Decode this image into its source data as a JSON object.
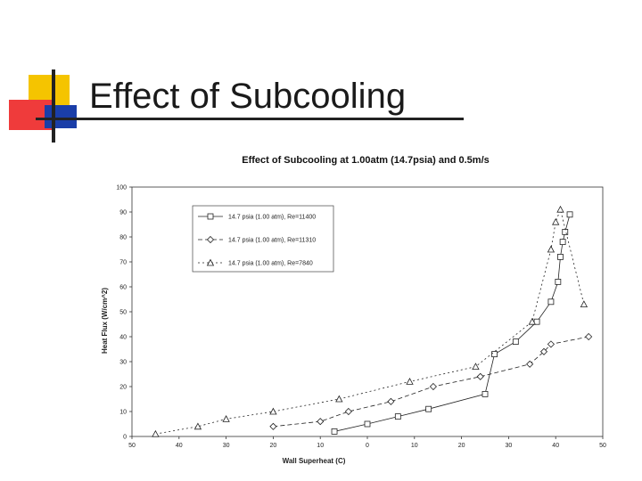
{
  "slide": {
    "title": "Effect of Subcooling"
  },
  "chart_data": {
    "type": "line",
    "title": "Effect of Subcooling at 1.00atm (14.7psia) and 0.5m/s",
    "xlabel": "Wall Superheat (C)",
    "ylabel": "Heat Flux (W/cm^2)",
    "xlim": [
      -50,
      50
    ],
    "ylim": [
      0,
      100
    ],
    "x_ticks": [
      -50,
      -40,
      -30,
      -20,
      -10,
      0,
      10,
      20,
      30,
      40,
      50
    ],
    "x_tick_labels": [
      "50",
      "40",
      "30",
      "20",
      "10",
      "0",
      "10",
      "20",
      "30",
      "40",
      "50"
    ],
    "y_ticks": [
      0,
      10,
      20,
      30,
      40,
      50,
      60,
      70,
      80,
      90,
      100
    ],
    "y_tick_labels": [
      "0",
      "10",
      "20",
      "30",
      "40",
      "50",
      "60",
      "70",
      "80",
      "90",
      "100"
    ],
    "legend_position": "top-left",
    "series": [
      {
        "name": "14.7 psia (1.00 atm), Re=11400",
        "marker": "square",
        "x": [
          -7,
          0,
          6.5,
          13,
          25,
          27,
          31.5,
          36,
          39,
          40.5,
          41,
          41.5,
          42,
          43
        ],
        "y": [
          2,
          5,
          8,
          11,
          17,
          33,
          38,
          46,
          54,
          62,
          72,
          78,
          82,
          89
        ]
      },
      {
        "name": "14.7 psia (1.00 atm), Re=11310",
        "marker": "diamond",
        "x": [
          -20,
          -10,
          -4,
          5,
          14,
          24,
          34.5,
          37.5,
          39,
          47
        ],
        "y": [
          4,
          6,
          10,
          14,
          20,
          24,
          29,
          34,
          37,
          40
        ]
      },
      {
        "name": "14.7 psia (1.00 atm), Re=7840",
        "marker": "triangle",
        "x": [
          -45,
          -36,
          -30,
          -20,
          -6,
          9,
          23,
          35,
          39,
          40,
          41,
          46
        ],
        "y": [
          1,
          4,
          7,
          10,
          15,
          22,
          28,
          46,
          75,
          86,
          91,
          53
        ]
      }
    ]
  }
}
